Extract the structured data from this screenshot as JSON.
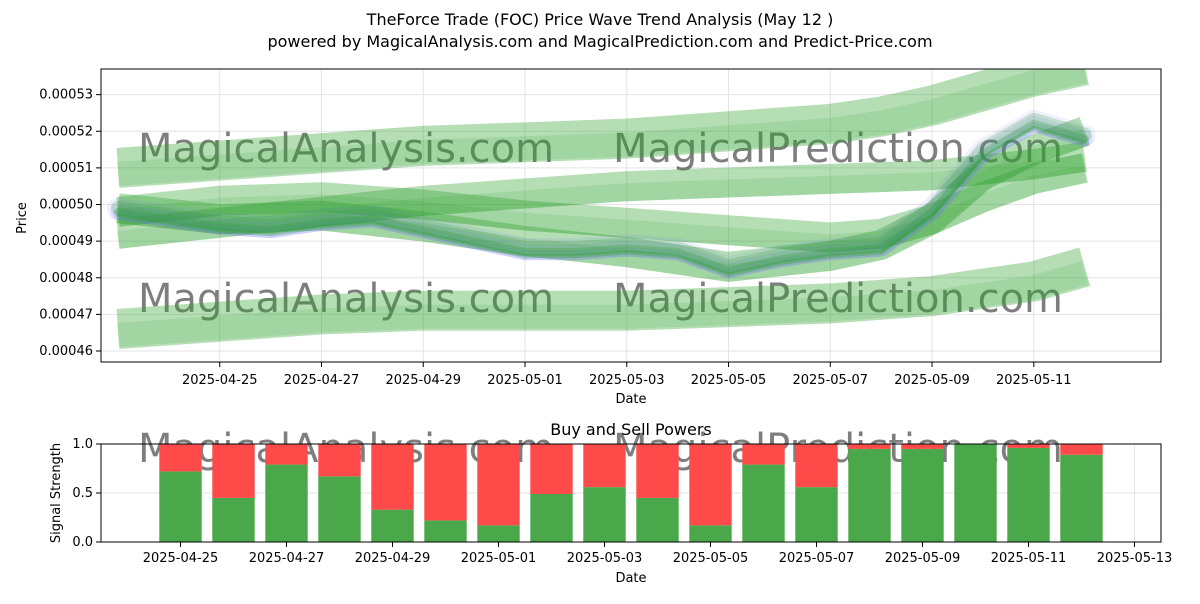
{
  "title_line1": "TheForce Trade (FOC) Price Wave Trend Analysis (May 12 )",
  "title_line2": "powered by MagicalAnalysis.com and MagicalPrediction.com and Predict-Price.com",
  "watermarks": [
    "MagicalAnalysis.com",
    "MagicalPrediction.com"
  ],
  "colors": {
    "band_green": "#2ca02c",
    "wave_blue": "#6a6aff",
    "buy": "#4aa84a",
    "sell": "#ff4a4a",
    "grid": "#e4e4e4",
    "watermark": "#d0d0d0"
  },
  "chart_data": [
    {
      "type": "line",
      "title": "",
      "xlabel": "Date",
      "ylabel": "Price",
      "x_ticks": [
        "2025-04-25",
        "2025-04-27",
        "2025-04-29",
        "2025-05-01",
        "2025-05-03",
        "2025-05-05",
        "2025-05-07",
        "2025-05-09",
        "2025-05-11"
      ],
      "y_ticks": [
        "0.00046",
        "0.00047",
        "0.00048",
        "0.00049",
        "0.00050",
        "0.00051",
        "0.00052",
        "0.00053"
      ],
      "ylim": [
        0.000457,
        0.000537
      ],
      "xlim": [
        "2025-04-22T16:00",
        "2025-05-13T12:00"
      ],
      "grid": true,
      "series": [
        {
          "type": "wave",
          "x": [
            "2025-04-23",
            "2025-04-24",
            "2025-04-25",
            "2025-04-26",
            "2025-04-27",
            "2025-04-28",
            "2025-04-29",
            "2025-04-30",
            "2025-05-01",
            "2025-05-02",
            "2025-05-03",
            "2025-05-04",
            "2025-05-05",
            "2025-05-06",
            "2025-05-07",
            "2025-05-08",
            "2025-05-09",
            "2025-05-10",
            "2025-05-11",
            "2025-05-12"
          ],
          "values": [
            0.000498,
            0.000496,
            0.000494,
            0.000493,
            0.000495,
            0.000496,
            0.000493,
            0.00049,
            0.000487,
            0.000487,
            0.000488,
            0.000487,
            0.000482,
            0.000485,
            0.000487,
            0.000488,
            0.000498,
            0.000514,
            0.000522,
            0.000518
          ]
        },
        {
          "type": "trend_band",
          "x": [
            "2025-04-23",
            "2025-04-25",
            "2025-04-27",
            "2025-04-29",
            "2025-05-01",
            "2025-05-03",
            "2025-05-05",
            "2025-05-07",
            "2025-05-08",
            "2025-05-09",
            "2025-05-10",
            "2025-05-11",
            "2025-05-12"
          ],
          "values": [
            0.00051,
            0.000512,
            0.000514,
            0.000516,
            0.000517,
            0.000518,
            0.00052,
            0.000522,
            0.000524,
            0.000527,
            0.000531,
            0.000535,
            0.000538
          ]
        },
        {
          "type": "trend_band",
          "x": [
            "2025-04-23",
            "2025-04-25",
            "2025-04-27",
            "2025-04-29",
            "2025-05-01",
            "2025-05-03",
            "2025-05-05",
            "2025-05-07",
            "2025-05-09",
            "2025-05-11",
            "2025-05-12"
          ],
          "values": [
            0.000492,
            0.000495,
            0.000498,
            0.000501,
            0.000503,
            0.000505,
            0.000506,
            0.000507,
            0.000508,
            0.000511,
            0.000513
          ]
        },
        {
          "type": "trend_band",
          "x": [
            "2025-04-23",
            "2025-04-25",
            "2025-04-27",
            "2025-04-29",
            "2025-05-01",
            "2025-05-03",
            "2025-05-05",
            "2025-05-07",
            "2025-05-08",
            "2025-05-09",
            "2025-05-10",
            "2025-05-11",
            "2025-05-12"
          ],
          "values": [
            0.000498,
            0.000501,
            0.000502,
            0.0005,
            0.000497,
            0.000495,
            0.000493,
            0.000491,
            0.000492,
            0.000496,
            0.000502,
            0.000507,
            0.00051
          ]
        },
        {
          "type": "trend_band",
          "x": [
            "2025-04-23",
            "2025-04-25",
            "2025-04-27",
            "2025-04-29",
            "2025-05-01",
            "2025-05-03",
            "2025-05-05",
            "2025-05-07",
            "2025-05-08",
            "2025-05-09",
            "2025-05-10",
            "2025-05-11",
            "2025-05-12"
          ],
          "values": [
            0.000499,
            0.000496,
            0.000497,
            0.000494,
            0.00049,
            0.000487,
            0.000483,
            0.000486,
            0.000489,
            0.000496,
            0.000508,
            0.000515,
            0.00052
          ]
        },
        {
          "type": "trend_band",
          "x": [
            "2025-04-23",
            "2025-04-25",
            "2025-04-27",
            "2025-04-29",
            "2025-05-01",
            "2025-05-03",
            "2025-05-05",
            "2025-05-07",
            "2025-05-09",
            "2025-05-11",
            "2025-05-12"
          ],
          "values": [
            0.000466,
            0.000468,
            0.00047,
            0.000471,
            0.000471,
            0.000471,
            0.000472,
            0.000473,
            0.000475,
            0.000479,
            0.000483
          ]
        }
      ]
    },
    {
      "type": "bar",
      "stacked": true,
      "title": "Buy and Sell Powers",
      "xlabel": "Date",
      "ylabel": "Signal Strength",
      "ylim": [
        0,
        1
      ],
      "y_ticks": [
        "0.0",
        "0.5",
        "1.0"
      ],
      "x_ticks": [
        "2025-04-25",
        "2025-04-27",
        "2025-04-29",
        "2025-05-01",
        "2025-05-03",
        "2025-05-05",
        "2025-05-07",
        "2025-05-09",
        "2025-05-11",
        "2025-05-13"
      ],
      "xlim": [
        "2025-04-23T12:00",
        "2025-05-13T12:00"
      ],
      "grid": true,
      "categories": [
        "2025-04-25",
        "2025-04-26",
        "2025-04-27",
        "2025-04-28",
        "2025-04-29",
        "2025-04-30",
        "2025-05-01",
        "2025-05-02",
        "2025-05-03",
        "2025-05-04",
        "2025-05-05",
        "2025-05-06",
        "2025-05-07",
        "2025-05-08",
        "2025-05-09",
        "2025-05-10",
        "2025-05-11",
        "2025-05-12"
      ],
      "series": [
        {
          "values": [
            0.72,
            0.45,
            0.79,
            0.67,
            0.33,
            0.22,
            0.17,
            0.49,
            0.56,
            0.45,
            0.17,
            0.79,
            0.56,
            0.95,
            0.95,
            1.0,
            0.96,
            0.89
          ]
        },
        {
          "values": [
            0.28,
            0.55,
            0.21,
            0.33,
            0.67,
            0.78,
            0.83,
            0.51,
            0.44,
            0.55,
            0.83,
            0.21,
            0.44,
            0.05,
            0.05,
            0.0,
            0.04,
            0.11
          ]
        }
      ]
    }
  ]
}
